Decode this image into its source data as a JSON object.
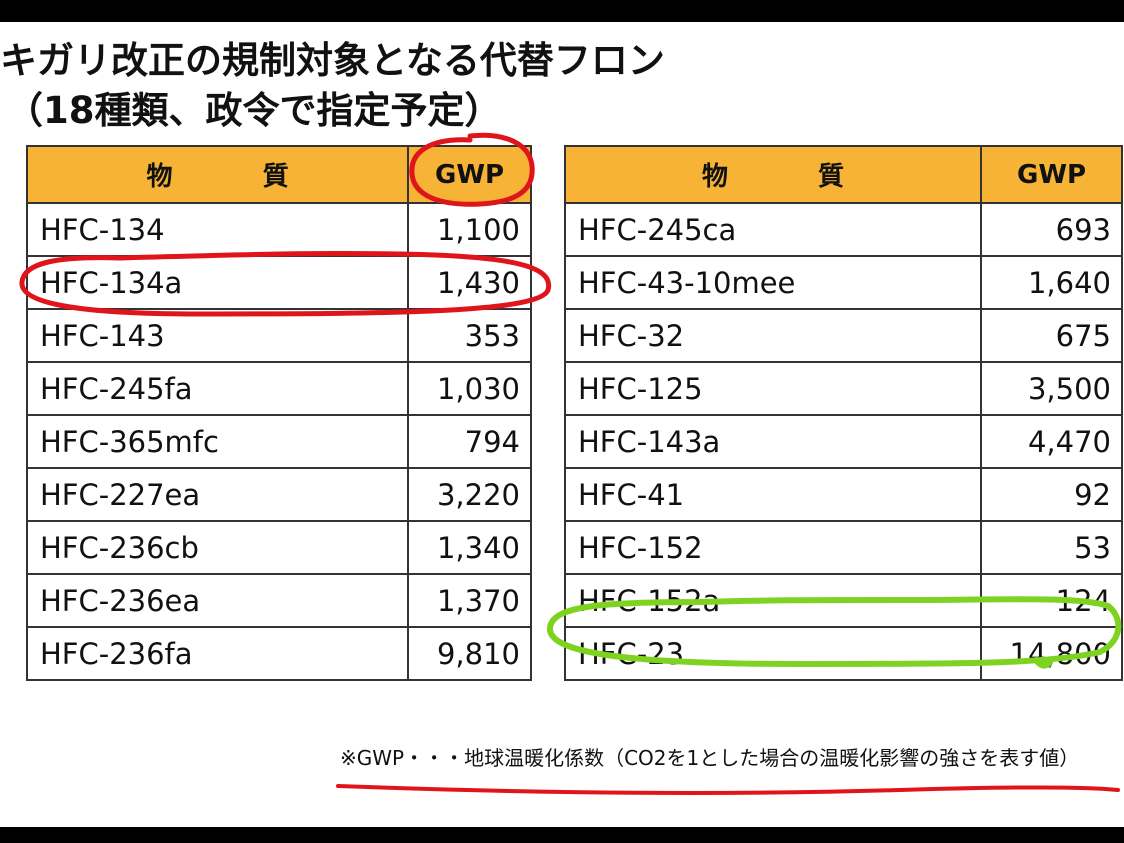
{
  "title": {
    "line1": "キガリ改正の規制対象となる代替フロン",
    "line2": "（18種類、政令で指定予定）"
  },
  "table_headers": {
    "substance": [
      "物",
      "質"
    ],
    "gwp": "GWP"
  },
  "left_rows": [
    {
      "name": "HFC-134",
      "gwp": "1,100"
    },
    {
      "name": "HFC-134a",
      "gwp": "1,430"
    },
    {
      "name": "HFC-143",
      "gwp": "353"
    },
    {
      "name": "HFC-245fa",
      "gwp": "1,030"
    },
    {
      "name": "HFC-365mfc",
      "gwp": "794"
    },
    {
      "name": "HFC-227ea",
      "gwp": "3,220"
    },
    {
      "name": "HFC-236cb",
      "gwp": "1,340"
    },
    {
      "name": "HFC-236ea",
      "gwp": "1,370"
    },
    {
      "name": "HFC-236fa",
      "gwp": "9,810"
    }
  ],
  "right_rows": [
    {
      "name": "HFC-245ca",
      "gwp": "693"
    },
    {
      "name": "HFC-43-10mee",
      "gwp": "1,640"
    },
    {
      "name": "HFC-32",
      "gwp": "675"
    },
    {
      "name": "HFC-125",
      "gwp": "3,500"
    },
    {
      "name": "HFC-143a",
      "gwp": "4,470"
    },
    {
      "name": "HFC-41",
      "gwp": "92"
    },
    {
      "name": "HFC-152",
      "gwp": "53"
    },
    {
      "name": "HFC-152a",
      "gwp": "124"
    },
    {
      "name": "HFC-23",
      "gwp": "14,800"
    }
  ],
  "footnote": "※GWP・・・地球温暖化係数（CO2を1とした場合の温暖化影響の強さを表す値）",
  "annotation_colors": {
    "red": "#e0141b",
    "green": "#7ed321"
  }
}
